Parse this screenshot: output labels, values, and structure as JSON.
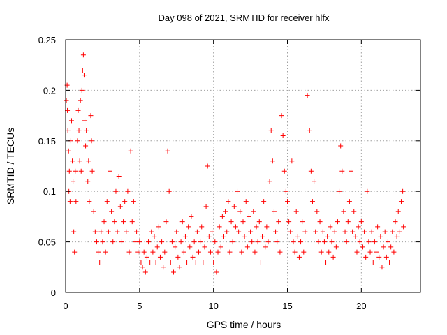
{
  "chart_data": {
    "type": "scatter",
    "title": "Day 098 of 2021, SRMTID for receiver hlfx",
    "xlabel": "GPS time / hours",
    "ylabel": "SRMTID / TECUs",
    "xlim": [
      0,
      24
    ],
    "ylim": [
      0,
      0.25
    ],
    "xticks": [
      0,
      5,
      10,
      15,
      20
    ],
    "xtick_labels": [
      "0",
      "5",
      "10",
      "15",
      "20"
    ],
    "yticks": [
      0,
      0.05,
      0.1,
      0.15,
      0.2,
      0.25
    ],
    "ytick_labels": [
      "0",
      "0.05",
      "0.1",
      "0.15",
      "0.2",
      "0.25"
    ],
    "grid": true,
    "marker": "plus",
    "color": "#ff0000",
    "series": [
      {
        "name": "hlfx",
        "points": [
          [
            0.05,
            0.19
          ],
          [
            0.1,
            0.205
          ],
          [
            0.12,
            0.18
          ],
          [
            0.15,
            0.16
          ],
          [
            0.2,
            0.14
          ],
          [
            0.22,
            0.1
          ],
          [
            0.25,
            0.12
          ],
          [
            0.3,
            0.09
          ],
          [
            0.35,
            0.15
          ],
          [
            0.4,
            0.17
          ],
          [
            0.45,
            0.13
          ],
          [
            0.5,
            0.11
          ],
          [
            0.55,
            0.06
          ],
          [
            0.6,
            0.04
          ],
          [
            0.65,
            0.12
          ],
          [
            0.7,
            0.09
          ],
          [
            0.8,
            0.15
          ],
          [
            0.85,
            0.18
          ],
          [
            0.9,
            0.16
          ],
          [
            0.95,
            0.13
          ],
          [
            1.0,
            0.19
          ],
          [
            1.05,
            0.12
          ],
          [
            1.1,
            0.2
          ],
          [
            1.15,
            0.22
          ],
          [
            1.2,
            0.235
          ],
          [
            1.25,
            0.215
          ],
          [
            1.3,
            0.17
          ],
          [
            1.35,
            0.145
          ],
          [
            1.4,
            0.16
          ],
          [
            1.5,
            0.11
          ],
          [
            1.55,
            0.13
          ],
          [
            1.6,
            0.09
          ],
          [
            1.7,
            0.175
          ],
          [
            1.75,
            0.15
          ],
          [
            1.8,
            0.12
          ],
          [
            1.9,
            0.08
          ],
          [
            2.0,
            0.06
          ],
          [
            2.1,
            0.05
          ],
          [
            2.2,
            0.04
          ],
          [
            2.3,
            0.03
          ],
          [
            2.4,
            0.06
          ],
          [
            2.5,
            0.05
          ],
          [
            2.6,
            0.07
          ],
          [
            2.7,
            0.04
          ],
          [
            2.8,
            0.09
          ],
          [
            2.9,
            0.06
          ],
          [
            3.0,
            0.12
          ],
          [
            3.1,
            0.08
          ],
          [
            3.2,
            0.05
          ],
          [
            3.3,
            0.07
          ],
          [
            3.4,
            0.1
          ],
          [
            3.5,
            0.06
          ],
          [
            3.6,
            0.115
          ],
          [
            3.7,
            0.085
          ],
          [
            3.8,
            0.05
          ],
          [
            3.9,
            0.07
          ],
          [
            4.0,
            0.09
          ],
          [
            4.1,
            0.06
          ],
          [
            4.2,
            0.1
          ],
          [
            4.3,
            0.04
          ],
          [
            4.4,
            0.14
          ],
          [
            4.5,
            0.07
          ],
          [
            4.6,
            0.09
          ],
          [
            4.7,
            0.05
          ],
          [
            4.8,
            0.06
          ],
          [
            4.9,
            0.04
          ],
          [
            5.0,
            0.05
          ],
          [
            5.1,
            0.03
          ],
          [
            5.2,
            0.025
          ],
          [
            5.3,
            0.04
          ],
          [
            5.4,
            0.02
          ],
          [
            5.5,
            0.035
          ],
          [
            5.6,
            0.05
          ],
          [
            5.7,
            0.03
          ],
          [
            5.8,
            0.06
          ],
          [
            5.9,
            0.04
          ],
          [
            6.0,
            0.055
          ],
          [
            6.1,
            0.03
          ],
          [
            6.2,
            0.045
          ],
          [
            6.3,
            0.065
          ],
          [
            6.4,
            0.035
          ],
          [
            6.5,
            0.05
          ],
          [
            6.6,
            0.025
          ],
          [
            6.7,
            0.04
          ],
          [
            6.8,
            0.07
          ],
          [
            6.9,
            0.14
          ],
          [
            7.0,
            0.1
          ],
          [
            7.1,
            0.03
          ],
          [
            7.2,
            0.05
          ],
          [
            7.3,
            0.02
          ],
          [
            7.4,
            0.045
          ],
          [
            7.5,
            0.06
          ],
          [
            7.6,
            0.035
          ],
          [
            7.7,
            0.025
          ],
          [
            7.8,
            0.05
          ],
          [
            7.9,
            0.07
          ],
          [
            8.0,
            0.04
          ],
          [
            8.1,
            0.055
          ],
          [
            8.2,
            0.03
          ],
          [
            8.3,
            0.065
          ],
          [
            8.4,
            0.045
          ],
          [
            8.5,
            0.075
          ],
          [
            8.6,
            0.035
          ],
          [
            8.7,
            0.05
          ],
          [
            8.8,
            0.03
          ],
          [
            8.9,
            0.06
          ],
          [
            9.0,
            0.04
          ],
          [
            9.1,
            0.05
          ],
          [
            9.2,
            0.065
          ],
          [
            9.3,
            0.03
          ],
          [
            9.4,
            0.045
          ],
          [
            9.5,
            0.085
          ],
          [
            9.6,
            0.125
          ],
          [
            9.7,
            0.055
          ],
          [
            9.8,
            0.04
          ],
          [
            9.9,
            0.06
          ],
          [
            10.0,
            0.03
          ],
          [
            10.1,
            0.05
          ],
          [
            10.2,
            0.02
          ],
          [
            10.3,
            0.04
          ],
          [
            10.4,
            0.065
          ],
          [
            10.5,
            0.045
          ],
          [
            10.6,
            0.075
          ],
          [
            10.7,
            0.055
          ],
          [
            10.8,
            0.08
          ],
          [
            10.9,
            0.06
          ],
          [
            11.0,
            0.09
          ],
          [
            11.1,
            0.04
          ],
          [
            11.2,
            0.07
          ],
          [
            11.3,
            0.05
          ],
          [
            11.4,
            0.085
          ],
          [
            11.5,
            0.065
          ],
          [
            11.6,
            0.1
          ],
          [
            11.7,
            0.06
          ],
          [
            11.8,
            0.08
          ],
          [
            11.9,
            0.04
          ],
          [
            12.0,
            0.07
          ],
          [
            12.1,
            0.055
          ],
          [
            12.2,
            0.09
          ],
          [
            12.3,
            0.045
          ],
          [
            12.4,
            0.075
          ],
          [
            12.5,
            0.06
          ],
          [
            12.6,
            0.05
          ],
          [
            12.7,
            0.08
          ],
          [
            12.8,
            0.04
          ],
          [
            12.9,
            0.065
          ],
          [
            13.0,
            0.05
          ],
          [
            13.1,
            0.07
          ],
          [
            13.2,
            0.03
          ],
          [
            13.3,
            0.055
          ],
          [
            13.4,
            0.09
          ],
          [
            13.5,
            0.045
          ],
          [
            13.6,
            0.065
          ],
          [
            13.7,
            0.05
          ],
          [
            13.8,
            0.11
          ],
          [
            13.9,
            0.16
          ],
          [
            14.0,
            0.13
          ],
          [
            14.1,
            0.08
          ],
          [
            14.2,
            0.06
          ],
          [
            14.3,
            0.05
          ],
          [
            14.4,
            0.07
          ],
          [
            14.5,
            0.04
          ],
          [
            14.6,
            0.175
          ],
          [
            14.7,
            0.155
          ],
          [
            14.8,
            0.12
          ],
          [
            14.9,
            0.1
          ],
          [
            15.0,
            0.09
          ],
          [
            15.1,
            0.07
          ],
          [
            15.2,
            0.06
          ],
          [
            15.3,
            0.13
          ],
          [
            15.4,
            0.05
          ],
          [
            15.5,
            0.04
          ],
          [
            15.6,
            0.08
          ],
          [
            15.7,
            0.055
          ],
          [
            15.8,
            0.035
          ],
          [
            15.9,
            0.05
          ],
          [
            16.0,
            0.07
          ],
          [
            16.1,
            0.04
          ],
          [
            16.2,
            0.06
          ],
          [
            16.35,
            0.195
          ],
          [
            16.5,
            0.16
          ],
          [
            16.6,
            0.12
          ],
          [
            16.7,
            0.09
          ],
          [
            16.8,
            0.11
          ],
          [
            16.9,
            0.06
          ],
          [
            17.0,
            0.08
          ],
          [
            17.1,
            0.05
          ],
          [
            17.2,
            0.07
          ],
          [
            17.3,
            0.04
          ],
          [
            17.4,
            0.06
          ],
          [
            17.5,
            0.05
          ],
          [
            17.6,
            0.03
          ],
          [
            17.7,
            0.055
          ],
          [
            17.8,
            0.04
          ],
          [
            17.9,
            0.065
          ],
          [
            18.0,
            0.05
          ],
          [
            18.1,
            0.035
          ],
          [
            18.2,
            0.06
          ],
          [
            18.3,
            0.045
          ],
          [
            18.4,
            0.07
          ],
          [
            18.5,
            0.1
          ],
          [
            18.6,
            0.145
          ],
          [
            18.7,
            0.12
          ],
          [
            18.8,
            0.08
          ],
          [
            18.9,
            0.06
          ],
          [
            19.0,
            0.05
          ],
          [
            19.1,
            0.07
          ],
          [
            19.2,
            0.09
          ],
          [
            19.3,
            0.12
          ],
          [
            19.4,
            0.06
          ],
          [
            19.5,
            0.08
          ],
          [
            19.6,
            0.055
          ],
          [
            19.7,
            0.04
          ],
          [
            19.8,
            0.065
          ],
          [
            19.9,
            0.05
          ],
          [
            20.0,
            0.07
          ],
          [
            20.1,
            0.045
          ],
          [
            20.2,
            0.06
          ],
          [
            20.3,
            0.035
          ],
          [
            20.4,
            0.1
          ],
          [
            20.5,
            0.05
          ],
          [
            20.6,
            0.04
          ],
          [
            20.7,
            0.06
          ],
          [
            20.8,
            0.03
          ],
          [
            20.9,
            0.05
          ],
          [
            21.0,
            0.04
          ],
          [
            21.1,
            0.065
          ],
          [
            21.2,
            0.035
          ],
          [
            21.3,
            0.055
          ],
          [
            21.4,
            0.025
          ],
          [
            21.5,
            0.045
          ],
          [
            21.6,
            0.06
          ],
          [
            21.7,
            0.035
          ],
          [
            21.8,
            0.05
          ],
          [
            21.9,
            0.03
          ],
          [
            22.0,
            0.045
          ],
          [
            22.1,
            0.06
          ],
          [
            22.2,
            0.04
          ],
          [
            22.3,
            0.07
          ],
          [
            22.4,
            0.055
          ],
          [
            22.5,
            0.08
          ],
          [
            22.6,
            0.06
          ],
          [
            22.7,
            0.09
          ],
          [
            22.8,
            0.1
          ],
          [
            22.85,
            0.065
          ]
        ]
      }
    ]
  }
}
